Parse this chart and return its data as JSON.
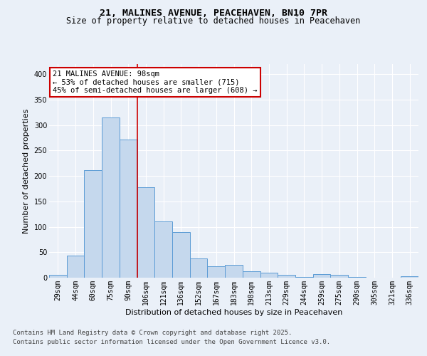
{
  "title_line1": "21, MALINES AVENUE, PEACEHAVEN, BN10 7PR",
  "title_line2": "Size of property relative to detached houses in Peacehaven",
  "xlabel": "Distribution of detached houses by size in Peacehaven",
  "ylabel": "Number of detached properties",
  "categories": [
    "29sqm",
    "44sqm",
    "60sqm",
    "75sqm",
    "90sqm",
    "106sqm",
    "121sqm",
    "136sqm",
    "152sqm",
    "167sqm",
    "183sqm",
    "198sqm",
    "213sqm",
    "229sqm",
    "244sqm",
    "259sqm",
    "275sqm",
    "290sqm",
    "305sqm",
    "321sqm",
    "336sqm"
  ],
  "bar_values": [
    5,
    44,
    212,
    315,
    272,
    178,
    110,
    90,
    38,
    23,
    25,
    13,
    10,
    6,
    1,
    7,
    5,
    2,
    0,
    0,
    3
  ],
  "bar_color": "#c5d8ed",
  "bar_edge_color": "#5b9bd5",
  "annotation_box_text": "21 MALINES AVENUE: 98sqm\n← 53% of detached houses are smaller (715)\n45% of semi-detached houses are larger (608) →",
  "vline_x": 4.5,
  "vline_color": "#cc0000",
  "footnote1": "Contains HM Land Registry data © Crown copyright and database right 2025.",
  "footnote2": "Contains public sector information licensed under the Open Government Licence v3.0.",
  "ylim": [
    0,
    420
  ],
  "background_color": "#eaf0f8",
  "plot_background": "#eaf0f8",
  "grid_color": "#ffffff",
  "title_fontsize": 9.5,
  "subtitle_fontsize": 8.5,
  "axis_label_fontsize": 8,
  "tick_fontsize": 7,
  "annotation_fontsize": 7.5,
  "footnote_fontsize": 6.5
}
